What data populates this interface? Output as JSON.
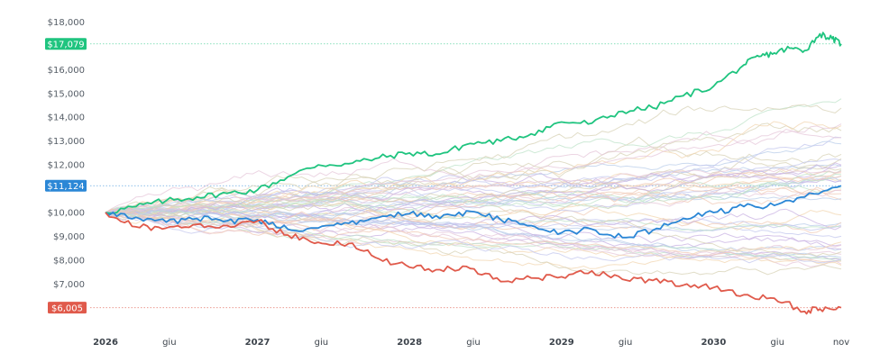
{
  "chart_data": {
    "type": "line",
    "title": "",
    "xlabel": "",
    "ylabel": "",
    "ylim": [
      5600,
      18200
    ],
    "x_range": [
      "2026-01",
      "2030-11"
    ],
    "grid": false,
    "y_ticks": [
      {
        "value": 18000,
        "label": "$18,000"
      },
      {
        "value": 16000,
        "label": "$16,000"
      },
      {
        "value": 15000,
        "label": "$15,000"
      },
      {
        "value": 14000,
        "label": "$14,000"
      },
      {
        "value": 13000,
        "label": "$13,000"
      },
      {
        "value": 12000,
        "label": "$12,000"
      },
      {
        "value": 10000,
        "label": "$10,000"
      },
      {
        "value": 9000,
        "label": "$9,000"
      },
      {
        "value": 8000,
        "label": "$8,000"
      },
      {
        "value": 7000,
        "label": "$7,000"
      }
    ],
    "x_ticks": [
      {
        "t": 2026.0,
        "label": "2026",
        "year": true
      },
      {
        "t": 2026.42,
        "label": "giu",
        "year": false
      },
      {
        "t": 2027.0,
        "label": "2027",
        "year": true
      },
      {
        "t": 2027.42,
        "label": "giu",
        "year": false
      },
      {
        "t": 2028.0,
        "label": "2028",
        "year": true
      },
      {
        "t": 2028.42,
        "label": "giu",
        "year": false
      },
      {
        "t": 2029.0,
        "label": "2029",
        "year": true
      },
      {
        "t": 2029.42,
        "label": "giu",
        "year": false
      },
      {
        "t": 2030.0,
        "label": "2030",
        "year": true
      },
      {
        "t": 2030.42,
        "label": "giu",
        "year": false
      },
      {
        "t": 2030.84,
        "label": "nov",
        "year": false
      }
    ],
    "highlighted_series": [
      {
        "color": "#1fc47f",
        "end_label": "$17,079",
        "end_value": 17079,
        "points": [
          [
            2026.0,
            10000
          ],
          [
            2026.2,
            10250
          ],
          [
            2026.4,
            10500
          ],
          [
            2026.6,
            10650
          ],
          [
            2026.8,
            10800
          ],
          [
            2027.0,
            10950
          ],
          [
            2027.2,
            11500
          ],
          [
            2027.4,
            12000
          ],
          [
            2027.6,
            12050
          ],
          [
            2027.8,
            12300
          ],
          [
            2028.0,
            12500
          ],
          [
            2028.2,
            12450
          ],
          [
            2028.4,
            12900
          ],
          [
            2028.6,
            13000
          ],
          [
            2028.8,
            13300
          ],
          [
            2029.0,
            13800
          ],
          [
            2029.2,
            13750
          ],
          [
            2029.4,
            14250
          ],
          [
            2029.6,
            14400
          ],
          [
            2029.8,
            14900
          ],
          [
            2030.0,
            15300
          ],
          [
            2030.2,
            16200
          ],
          [
            2030.3,
            16550
          ],
          [
            2030.4,
            16700
          ],
          [
            2030.5,
            16900
          ],
          [
            2030.6,
            16800
          ],
          [
            2030.7,
            17500
          ],
          [
            2030.78,
            17300
          ],
          [
            2030.84,
            17079
          ]
        ]
      },
      {
        "color": "#2b87d6",
        "end_label": "$11,124",
        "end_value": 11124,
        "points": [
          [
            2026.0,
            10000
          ],
          [
            2026.2,
            9800
          ],
          [
            2026.4,
            9600
          ],
          [
            2026.6,
            9750
          ],
          [
            2026.8,
            9650
          ],
          [
            2027.0,
            9700
          ],
          [
            2027.2,
            9300
          ],
          [
            2027.4,
            9350
          ],
          [
            2027.6,
            9550
          ],
          [
            2027.8,
            9800
          ],
          [
            2028.0,
            9950
          ],
          [
            2028.2,
            9750
          ],
          [
            2028.4,
            10050
          ],
          [
            2028.6,
            9700
          ],
          [
            2028.8,
            9450
          ],
          [
            2029.0,
            9150
          ],
          [
            2029.2,
            9300
          ],
          [
            2029.4,
            8950
          ],
          [
            2029.6,
            9250
          ],
          [
            2029.8,
            9750
          ],
          [
            2030.0,
            10000
          ],
          [
            2030.2,
            10250
          ],
          [
            2030.4,
            10300
          ],
          [
            2030.6,
            10650
          ],
          [
            2030.84,
            11124
          ]
        ]
      },
      {
        "color": "#e05a4b",
        "end_label": "$6,005",
        "end_value": 6005,
        "points": [
          [
            2026.0,
            10000
          ],
          [
            2026.2,
            9400
          ],
          [
            2026.4,
            9350
          ],
          [
            2026.6,
            9500
          ],
          [
            2026.8,
            9450
          ],
          [
            2027.0,
            9650
          ],
          [
            2027.2,
            9050
          ],
          [
            2027.4,
            8750
          ],
          [
            2027.6,
            8700
          ],
          [
            2027.8,
            8050
          ],
          [
            2028.0,
            7700
          ],
          [
            2028.2,
            7600
          ],
          [
            2028.4,
            7650
          ],
          [
            2028.6,
            7100
          ],
          [
            2028.8,
            7250
          ],
          [
            2029.0,
            7300
          ],
          [
            2029.2,
            7550
          ],
          [
            2029.4,
            7200
          ],
          [
            2029.6,
            7150
          ],
          [
            2029.8,
            6950
          ],
          [
            2030.0,
            6850
          ],
          [
            2030.2,
            6550
          ],
          [
            2030.4,
            6400
          ],
          [
            2030.6,
            5850
          ],
          [
            2030.7,
            5950
          ],
          [
            2030.84,
            6005
          ]
        ]
      }
    ],
    "background_series": {
      "count": 55,
      "start_value": 10000,
      "colors": [
        "#c9b3e3",
        "#b9cdea",
        "#f0c9b6",
        "#bfe3c9",
        "#e6c7d9",
        "#d7d2b5",
        "#c3c7ee",
        "#f2d6b0"
      ]
    }
  }
}
